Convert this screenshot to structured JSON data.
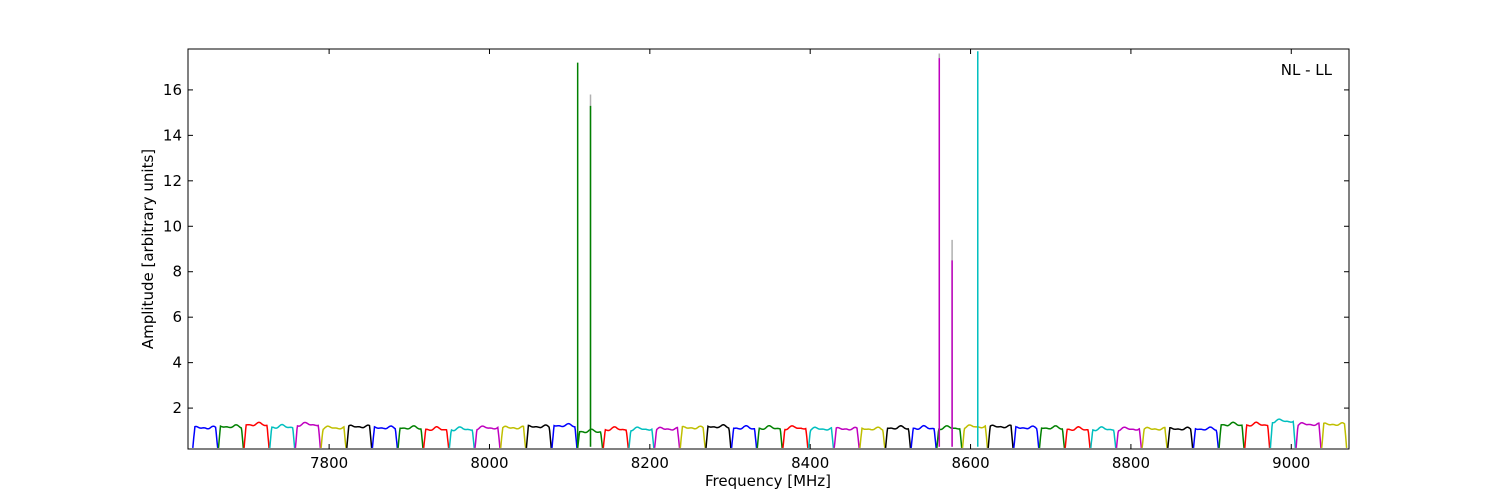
{
  "chart_data": {
    "type": "line",
    "title": "",
    "annotation": "NL - LL",
    "xlabel": "Frequency [MHz]",
    "ylabel": "Amplitude [arbitrary units]",
    "xlim": [
      7624,
      9072
    ],
    "ylim": [
      0.2,
      17.8
    ],
    "xticks": [
      7800,
      8000,
      8200,
      8400,
      8600,
      8800,
      9000
    ],
    "yticks": [
      2,
      4,
      6,
      8,
      10,
      12,
      14,
      16
    ],
    "grid": false,
    "channel_width_mhz": 32,
    "channels": [
      {
        "start": 7630,
        "color": "#0000ff",
        "level": 1.15
      },
      {
        "start": 7662,
        "color": "#008000",
        "level": 1.2
      },
      {
        "start": 7694,
        "color": "#ff0000",
        "level": 1.3
      },
      {
        "start": 7726,
        "color": "#00bfbf",
        "level": 1.2
      },
      {
        "start": 7758,
        "color": "#bf00bf",
        "level": 1.3
      },
      {
        "start": 7790,
        "color": "#bfbf00",
        "level": 1.15
      },
      {
        "start": 7822,
        "color": "#000000",
        "level": 1.2
      },
      {
        "start": 7854,
        "color": "#0000ff",
        "level": 1.15
      },
      {
        "start": 7886,
        "color": "#008000",
        "level": 1.15
      },
      {
        "start": 7918,
        "color": "#ff0000",
        "level": 1.1
      },
      {
        "start": 7950,
        "color": "#00bfbf",
        "level": 1.1
      },
      {
        "start": 7982,
        "color": "#bf00bf",
        "level": 1.15
      },
      {
        "start": 8014,
        "color": "#bfbf00",
        "level": 1.15
      },
      {
        "start": 8046,
        "color": "#000000",
        "level": 1.2
      },
      {
        "start": 8078,
        "color": "#0000ff",
        "level": 1.25
      },
      {
        "start": 8110,
        "color": "#008000",
        "level": 1.0
      },
      {
        "start": 8142,
        "color": "#ff0000",
        "level": 1.1
      },
      {
        "start": 8174,
        "color": "#00bfbf",
        "level": 1.1
      },
      {
        "start": 8206,
        "color": "#bf00bf",
        "level": 1.1
      },
      {
        "start": 8238,
        "color": "#bfbf00",
        "level": 1.15
      },
      {
        "start": 8270,
        "color": "#000000",
        "level": 1.2
      },
      {
        "start": 8302,
        "color": "#0000ff",
        "level": 1.15
      },
      {
        "start": 8334,
        "color": "#008000",
        "level": 1.15
      },
      {
        "start": 8366,
        "color": "#ff0000",
        "level": 1.15
      },
      {
        "start": 8398,
        "color": "#00bfbf",
        "level": 1.1
      },
      {
        "start": 8430,
        "color": "#bf00bf",
        "level": 1.1
      },
      {
        "start": 8462,
        "color": "#bfbf00",
        "level": 1.1
      },
      {
        "start": 8494,
        "color": "#000000",
        "level": 1.15
      },
      {
        "start": 8526,
        "color": "#0000ff",
        "level": 1.15
      },
      {
        "start": 8558,
        "color": "#008000",
        "level": 1.15
      },
      {
        "start": 8590,
        "color": "#bfbf00",
        "level": 1.2
      },
      {
        "start": 8622,
        "color": "#000000",
        "level": 1.2
      },
      {
        "start": 8654,
        "color": "#0000ff",
        "level": 1.15
      },
      {
        "start": 8686,
        "color": "#008000",
        "level": 1.15
      },
      {
        "start": 8718,
        "color": "#ff0000",
        "level": 1.1
      },
      {
        "start": 8750,
        "color": "#00bfbf",
        "level": 1.1
      },
      {
        "start": 8782,
        "color": "#bf00bf",
        "level": 1.1
      },
      {
        "start": 8814,
        "color": "#bfbf00",
        "level": 1.1
      },
      {
        "start": 8846,
        "color": "#000000",
        "level": 1.1
      },
      {
        "start": 8878,
        "color": "#0000ff",
        "level": 1.1
      },
      {
        "start": 8910,
        "color": "#008000",
        "level": 1.3
      },
      {
        "start": 8942,
        "color": "#ff0000",
        "level": 1.3
      },
      {
        "start": 8974,
        "color": "#00bfbf",
        "level": 1.45
      },
      {
        "start": 9006,
        "color": "#bf00bf",
        "level": 1.3
      },
      {
        "start": 9038,
        "color": "#bfbf00",
        "level": 1.3
      }
    ],
    "spikes": [
      {
        "x": 8110,
        "y": 17.2,
        "color": "#008000"
      },
      {
        "x": 8126,
        "y": 15.8,
        "color": "#b0b0b0"
      },
      {
        "x": 8126,
        "y": 15.3,
        "color": "#008000"
      },
      {
        "x": 8561,
        "y": 17.6,
        "color": "#b0b0b0"
      },
      {
        "x": 8561,
        "y": 17.4,
        "color": "#bf00bf"
      },
      {
        "x": 8577,
        "y": 9.4,
        "color": "#b0b0b0"
      },
      {
        "x": 8577,
        "y": 8.5,
        "color": "#bf00bf"
      },
      {
        "x": 8609,
        "y": 17.7,
        "color": "#00bfbf"
      }
    ]
  }
}
